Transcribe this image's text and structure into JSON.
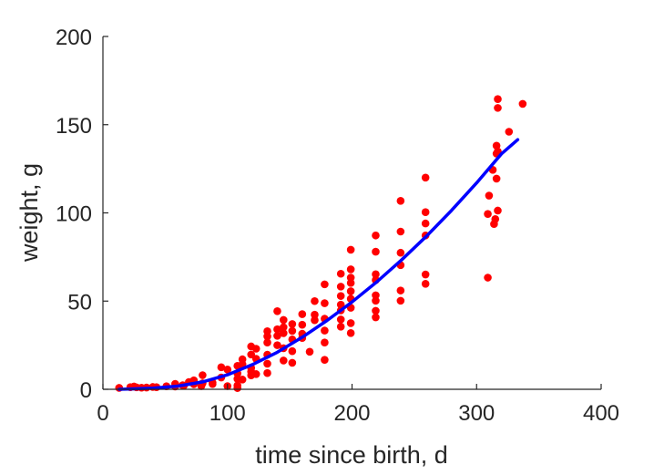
{
  "chart_data": {
    "type": "scatter",
    "title": "",
    "xlabel": "time since birth, d",
    "ylabel": "weight, g",
    "xlim": [
      0,
      400
    ],
    "ylim": [
      0,
      200
    ],
    "xticks": [
      0,
      100,
      200,
      300,
      400
    ],
    "yticks": [
      0,
      50,
      100,
      150,
      200
    ],
    "grid": false,
    "colors": {
      "points": "#ff0000",
      "fit": "#0000ff",
      "axis": "#262626"
    },
    "series": [
      {
        "kind": "scatter",
        "points": [
          [
            13,
            0.8
          ],
          [
            22,
            1.2
          ],
          [
            25,
            1.6
          ],
          [
            27,
            1.1
          ],
          [
            31,
            0.9
          ],
          [
            35,
            1.0
          ],
          [
            40,
            1.3
          ],
          [
            43,
            1.2
          ],
          [
            51,
            1.7
          ],
          [
            58,
            3.1
          ],
          [
            58,
            1.6
          ],
          [
            64,
            2.3
          ],
          [
            65,
            2.1
          ],
          [
            69,
            4.1
          ],
          [
            73,
            5.1
          ],
          [
            73,
            2.9
          ],
          [
            79,
            1.8
          ],
          [
            80,
            8.0
          ],
          [
            80,
            3.4
          ],
          [
            88,
            3.8
          ],
          [
            88,
            3.0
          ],
          [
            95,
            12.5
          ],
          [
            95,
            6.7
          ],
          [
            100,
            11.2
          ],
          [
            100,
            1.8
          ],
          [
            108,
            13.3
          ],
          [
            108,
            9.0
          ],
          [
            108,
            5.9
          ],
          [
            108,
            2.2
          ],
          [
            108,
            0.7
          ],
          [
            112,
            17.0
          ],
          [
            112,
            14.2
          ],
          [
            112,
            5.5
          ],
          [
            119,
            24.3
          ],
          [
            119,
            19.7
          ],
          [
            119,
            12.1
          ],
          [
            119,
            10.0
          ],
          [
            119,
            7.9
          ],
          [
            123,
            23.0
          ],
          [
            123,
            17.3
          ],
          [
            123,
            8.6
          ],
          [
            132,
            32.9
          ],
          [
            132,
            30.0
          ],
          [
            132,
            26.5
          ],
          [
            132,
            19.6
          ],
          [
            132,
            14.5
          ],
          [
            132,
            9.2
          ],
          [
            140,
            44.3
          ],
          [
            140,
            34.0
          ],
          [
            140,
            30.3
          ],
          [
            140,
            25.0
          ],
          [
            145,
            39.3
          ],
          [
            145,
            35.2
          ],
          [
            145,
            31.8
          ],
          [
            145,
            23.3
          ],
          [
            145,
            16.3
          ],
          [
            152,
            37.0
          ],
          [
            152,
            33.1
          ],
          [
            152,
            28.3
          ],
          [
            152,
            21.6
          ],
          [
            152,
            15.0
          ],
          [
            160,
            42.6
          ],
          [
            160,
            36.6
          ],
          [
            160,
            31.5
          ],
          [
            160,
            29.1
          ],
          [
            166,
            21.3
          ],
          [
            170,
            50.0
          ],
          [
            170,
            42.3
          ],
          [
            170,
            39.2
          ],
          [
            178,
            59.5
          ],
          [
            178,
            48.8
          ],
          [
            178,
            40.0
          ],
          [
            178,
            33.3
          ],
          [
            178,
            26.5
          ],
          [
            178,
            16.7
          ],
          [
            191,
            65.5
          ],
          [
            191,
            58.2
          ],
          [
            191,
            52.9
          ],
          [
            191,
            48.0
          ],
          [
            191,
            44.7
          ],
          [
            191,
            39.6
          ],
          [
            191,
            35.5
          ],
          [
            199,
            79.1
          ],
          [
            199,
            68.0
          ],
          [
            199,
            63.3
          ],
          [
            199,
            60.3
          ],
          [
            199,
            55.6
          ],
          [
            199,
            51.3
          ],
          [
            199,
            46.2
          ],
          [
            199,
            37.5
          ],
          [
            199,
            31.9
          ],
          [
            219,
            87.2
          ],
          [
            219,
            78.0
          ],
          [
            219,
            65.2
          ],
          [
            219,
            61.9
          ],
          [
            219,
            53.3
          ],
          [
            219,
            50.2
          ],
          [
            219,
            44.5
          ],
          [
            219,
            40.8
          ],
          [
            239,
            106.8
          ],
          [
            239,
            89.4
          ],
          [
            239,
            77.4
          ],
          [
            239,
            70.4
          ],
          [
            239,
            56.0
          ],
          [
            239,
            50.2
          ],
          [
            259,
            120.0
          ],
          [
            259,
            100.4
          ],
          [
            259,
            94.0
          ],
          [
            259,
            87.2
          ],
          [
            259,
            65.1
          ],
          [
            259,
            59.8
          ],
          [
            309,
            99.4
          ],
          [
            309,
            63.3
          ],
          [
            310,
            109.8
          ],
          [
            313,
            124.4
          ],
          [
            314,
            93.7
          ],
          [
            315,
            96.5
          ],
          [
            316,
            138.1
          ],
          [
            316,
            133.6
          ],
          [
            316,
            119.4
          ],
          [
            317,
            164.5
          ],
          [
            317,
            159.5
          ],
          [
            317,
            134.8
          ],
          [
            317,
            101.3
          ],
          [
            326,
            146.0
          ],
          [
            337,
            161.8
          ]
        ]
      },
      {
        "kind": "line",
        "points": [
          [
            13,
            0.0
          ],
          [
            20,
            0.1
          ],
          [
            40,
            0.6
          ],
          [
            60,
            1.8
          ],
          [
            80,
            4.2
          ],
          [
            100,
            8.2
          ],
          [
            120,
            14.0
          ],
          [
            140,
            21.0
          ],
          [
            160,
            29.5
          ],
          [
            180,
            39.0
          ],
          [
            200,
            49.5
          ],
          [
            220,
            61.0
          ],
          [
            240,
            73.5
          ],
          [
            260,
            87.0
          ],
          [
            280,
            101.5
          ],
          [
            300,
            117.0
          ],
          [
            320,
            133.5
          ],
          [
            333,
            141.5
          ]
        ]
      }
    ]
  }
}
